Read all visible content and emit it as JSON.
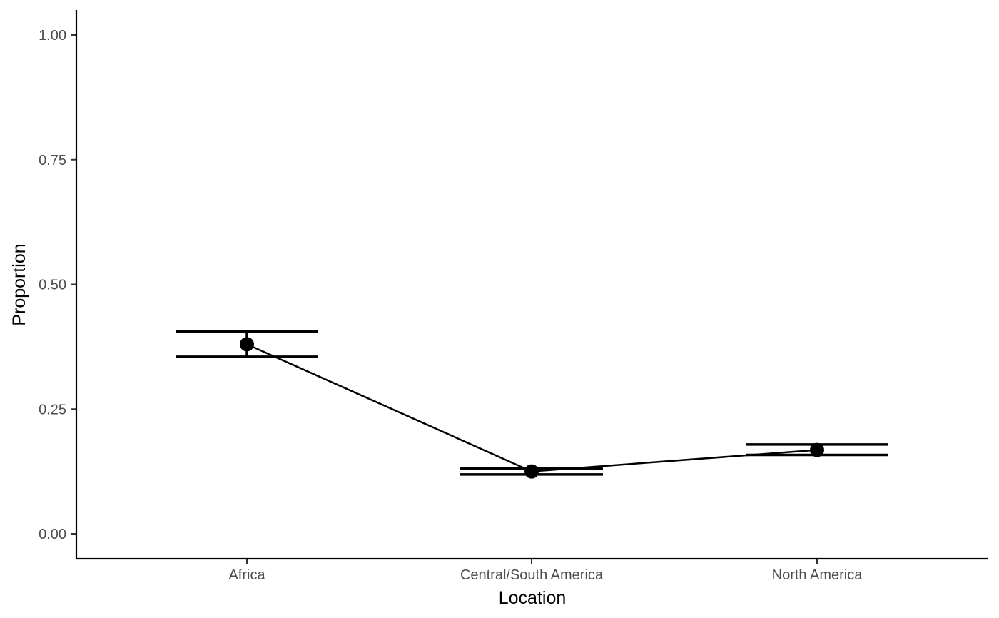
{
  "chart_data": {
    "type": "line",
    "title": "",
    "xlabel": "Location",
    "ylabel": "Proportion",
    "categories": [
      "Africa",
      "Central/South America",
      "North America"
    ],
    "values": [
      0.38,
      0.125,
      0.168
    ],
    "error_low": [
      0.355,
      0.119,
      0.158
    ],
    "error_high": [
      0.406,
      0.131,
      0.179
    ],
    "ylim": [
      0,
      1
    ],
    "yticks": [
      0,
      0.25,
      0.5,
      0.75,
      1.0
    ],
    "ytick_labels": [
      "0.00",
      "0.25",
      "0.50",
      "0.75",
      "1.00"
    ],
    "grid": false,
    "legend": "none",
    "colors": {
      "point": "#000000",
      "line": "#000000",
      "tick_text": "#4d4d4d"
    }
  }
}
